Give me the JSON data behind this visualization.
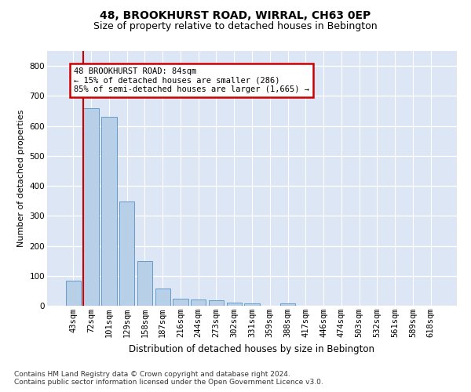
{
  "title": "48, BROOKHURST ROAD, WIRRAL, CH63 0EP",
  "subtitle": "Size of property relative to detached houses in Bebington",
  "xlabel": "Distribution of detached houses by size in Bebington",
  "ylabel": "Number of detached properties",
  "categories": [
    "43sqm",
    "72sqm",
    "101sqm",
    "129sqm",
    "158sqm",
    "187sqm",
    "216sqm",
    "244sqm",
    "273sqm",
    "302sqm",
    "331sqm",
    "359sqm",
    "388sqm",
    "417sqm",
    "446sqm",
    "474sqm",
    "503sqm",
    "532sqm",
    "561sqm",
    "589sqm",
    "618sqm"
  ],
  "values": [
    85,
    660,
    630,
    348,
    148,
    58,
    23,
    20,
    18,
    10,
    8,
    0,
    8,
    0,
    0,
    0,
    0,
    0,
    0,
    0,
    0
  ],
  "bar_color": "#b8cfe8",
  "bar_edge_color": "#6699cc",
  "annotation_text": "48 BROOKHURST ROAD: 84sqm\n← 15% of detached houses are smaller (286)\n85% of semi-detached houses are larger (1,665) →",
  "annotation_box_color": "white",
  "annotation_box_edge_color": "#cc0000",
  "vline_color": "#cc0000",
  "vline_x": 0.575,
  "ylim": [
    0,
    850
  ],
  "yticks": [
    0,
    100,
    200,
    300,
    400,
    500,
    600,
    700,
    800
  ],
  "background_color": "#dce6f5",
  "grid_color": "white",
  "footnote": "Contains HM Land Registry data © Crown copyright and database right 2024.\nContains public sector information licensed under the Open Government Licence v3.0.",
  "title_fontsize": 10,
  "subtitle_fontsize": 9,
  "ylabel_fontsize": 8,
  "xlabel_fontsize": 8.5,
  "tick_fontsize": 7.5,
  "annot_fontsize": 7.5,
  "footnote_fontsize": 6.5
}
